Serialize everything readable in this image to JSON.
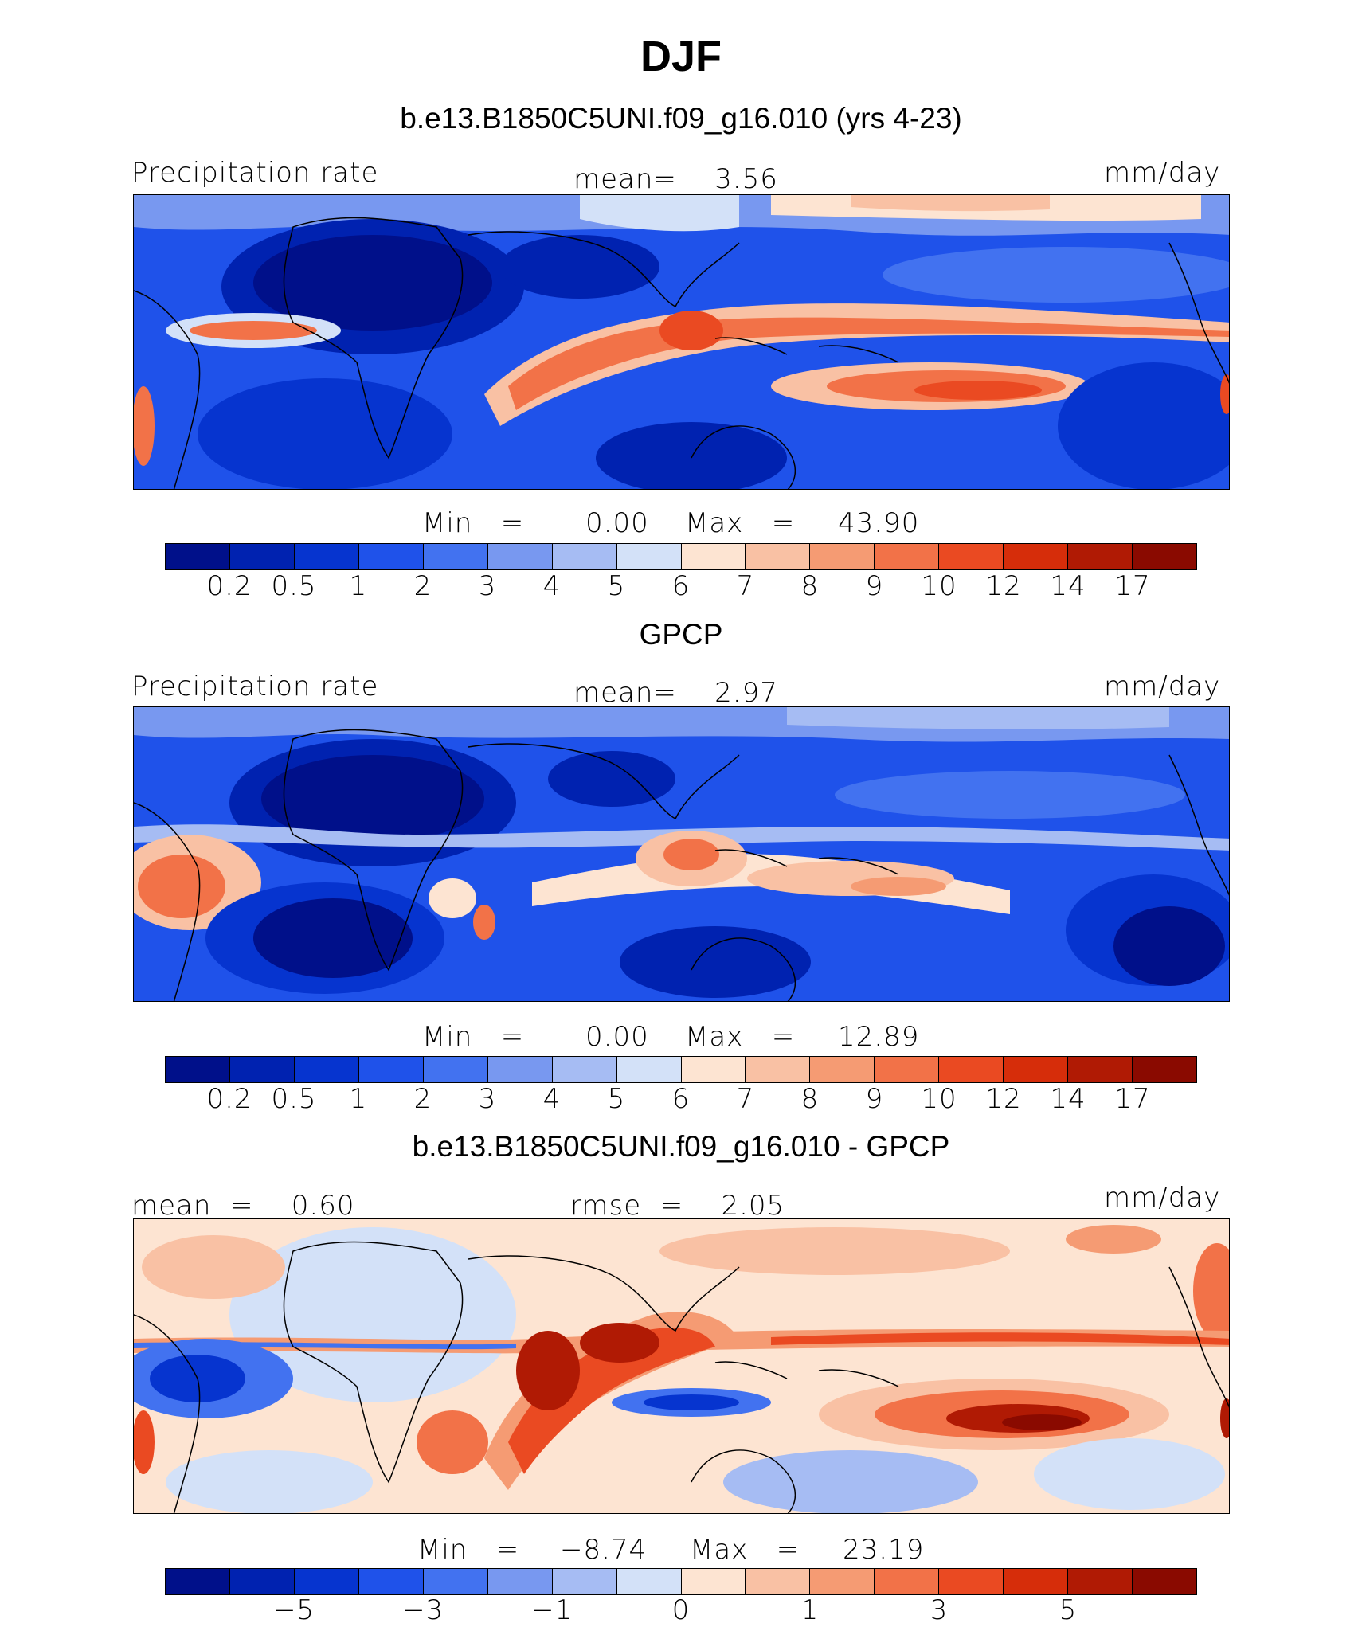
{
  "title": "DJF",
  "panels": [
    {
      "name": "model",
      "case_title": "b.e13.B1850C5UNI.f09_g16.010 (yrs 4-23)",
      "left_label": "Precipitation rate",
      "center_label": "mean=    3.56",
      "right_label": "mm/day",
      "min_label": "Min   =",
      "min_value": "0.00",
      "max_label": "Max   =",
      "max_value": "43.90",
      "colorbar_ticks": [
        "0.2",
        "0.5",
        "1",
        "2",
        "3",
        "4",
        "5",
        "6",
        "7",
        "8",
        "9",
        "10",
        "12",
        "14",
        "17"
      ]
    },
    {
      "name": "obs",
      "case_title": "GPCP",
      "left_label": "Precipitation rate",
      "center_label": "mean=    2.97",
      "right_label": "mm/day",
      "min_label": "Min   =",
      "min_value": "0.00",
      "max_label": "Max   =",
      "max_value": "12.89",
      "colorbar_ticks": [
        "0.2",
        "0.5",
        "1",
        "2",
        "3",
        "4",
        "5",
        "6",
        "7",
        "8",
        "9",
        "10",
        "12",
        "14",
        "17"
      ]
    },
    {
      "name": "diff",
      "case_title": "b.e13.B1850C5UNI.f09_g16.010 - GPCP",
      "left_label": "mean  =    0.60",
      "center_label": "rmse  =    2.05",
      "right_label": "mm/day",
      "min_label": "Min   =",
      "min_value": "−8.74",
      "max_label": "Max   =",
      "max_value": "23.19",
      "colorbar_ticks": [
        "−5",
        "−3",
        "−1",
        "0",
        "1",
        "3",
        "5"
      ]
    }
  ],
  "colors": {
    "seq": [
      "#00108a",
      "#0022b0",
      "#0634cf",
      "#1f52ea",
      "#4272f0",
      "#7898f0",
      "#a6bcf3",
      "#d3e1f8",
      "#fde4d2",
      "#f9c1a4",
      "#f59b73",
      "#f27248",
      "#ea4a22",
      "#d62d0a",
      "#b01a04",
      "#8a0a00"
    ]
  }
}
